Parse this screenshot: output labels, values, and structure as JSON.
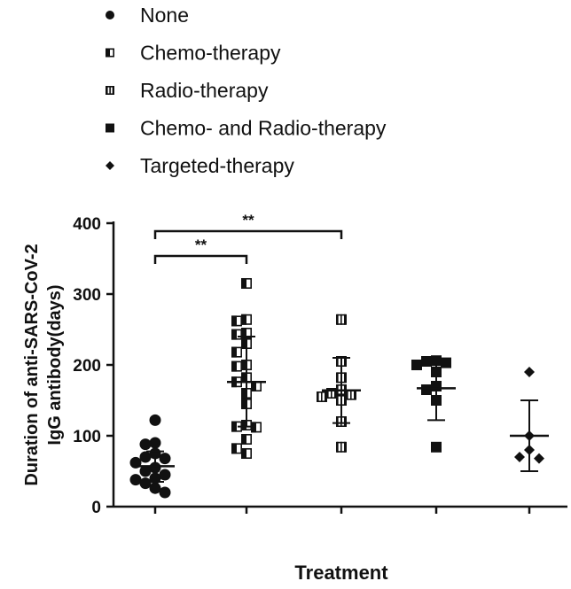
{
  "chart_data": {
    "type": "scatter",
    "title": "",
    "xlabel": "Treatment",
    "ylabel_line1": "Duration of  anti-SARS-CoV-2",
    "ylabel_line2": "IgG antibody(days)",
    "ylim": [
      0,
      400
    ],
    "yticks": [
      "0",
      "100",
      "200",
      "300",
      "400"
    ],
    "grid": false,
    "legend_position": "top-left",
    "series": [
      {
        "name": "None",
        "marker": "circle",
        "mean": 57,
        "sd_low": 35,
        "sd_high": 78,
        "values": [
          122,
          90,
          88,
          75,
          70,
          68,
          62,
          55,
          50,
          45,
          40,
          38,
          33,
          26,
          20
        ]
      },
      {
        "name": "Chemo-therapy",
        "marker": "square-half",
        "mean": 176,
        "sd_low": 113,
        "sd_high": 240,
        "values": [
          315,
          264,
          262,
          245,
          243,
          230,
          218,
          200,
          198,
          182,
          176,
          170,
          160,
          145,
          115,
          113,
          112,
          95,
          82,
          75
        ]
      },
      {
        "name": "Radio-therapy",
        "marker": "square-striped",
        "mean": 164,
        "sd_low": 118,
        "sd_high": 210,
        "values": [
          264,
          205,
          182,
          165,
          160,
          158,
          155,
          150,
          120,
          84
        ]
      },
      {
        "name": "Chemo- and Radio-therapy",
        "marker": "square",
        "mean": 167,
        "sd_low": 122,
        "sd_high": 205,
        "values": [
          206,
          205,
          203,
          200,
          190,
          170,
          165,
          150,
          84
        ]
      },
      {
        "name": "Targeted-therapy",
        "marker": "diamond",
        "mean": 100,
        "sd_low": 50,
        "sd_high": 150,
        "values": [
          190,
          100,
          80,
          70,
          68
        ]
      }
    ],
    "significance": [
      {
        "from": 0,
        "to": 1,
        "label": "**"
      },
      {
        "from": 0,
        "to": 2,
        "label": "**"
      }
    ]
  }
}
